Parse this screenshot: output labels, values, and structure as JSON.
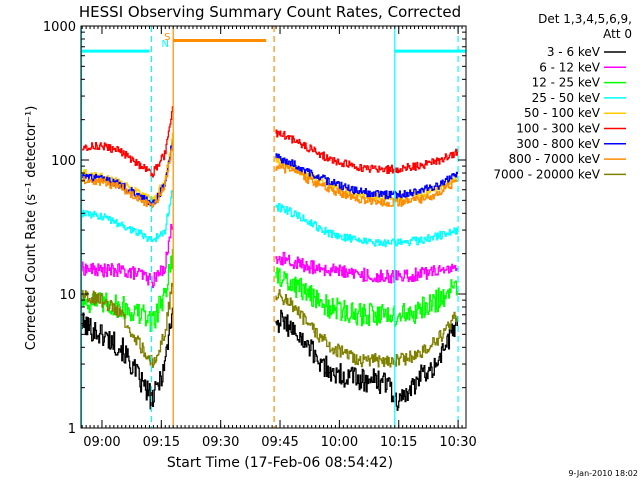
{
  "chart_data": {
    "type": "line",
    "title": "HESSI Observing Summary Count Rates, Corrected",
    "xlabel": "Start Time (17-Feb-06 08:54:42)",
    "ylabel": "Corrected Count Rate (s⁻¹ detector⁻¹)",
    "y_scale": "log",
    "ylim": [
      1,
      1000
    ],
    "y_ticks": [
      1,
      10,
      100,
      1000
    ],
    "y_tick_labels": [
      "1",
      "10",
      "100",
      "1000"
    ],
    "x_range": [
      "08:54:42",
      "10:32:00"
    ],
    "x_ticks": [
      "09:00",
      "09:15",
      "09:30",
      "09:45",
      "10:00",
      "10:15",
      "10:30"
    ],
    "legend_header": [
      "Det 1,3,4,5,6,9,",
      "Att 0"
    ],
    "legend_position": "right",
    "gaps": [
      [
        "09:18:00",
        "09:44:00"
      ]
    ],
    "series": [
      {
        "name": "3 - 6 keV",
        "color": "#000000",
        "left": [
          [
            "08:55",
            6
          ],
          [
            "09:00",
            5
          ],
          [
            "09:05",
            4
          ],
          [
            "09:10",
            2.2
          ],
          [
            "09:13",
            1.6
          ],
          [
            "09:16",
            3
          ],
          [
            "09:18",
            8
          ]
        ],
        "right": [
          [
            "09:44",
            6.5
          ],
          [
            "09:47",
            6
          ],
          [
            "09:52",
            4
          ],
          [
            "09:58",
            2.6
          ],
          [
            "10:05",
            2.3
          ],
          [
            "10:12",
            2.2
          ],
          [
            "10:15",
            1.5
          ],
          [
            "10:20",
            2.3
          ],
          [
            "10:25",
            3.2
          ],
          [
            "10:30",
            6
          ]
        ]
      },
      {
        "name": "6 - 12 keV",
        "color": "#ff00ff",
        "left": [
          [
            "08:55",
            15.5
          ],
          [
            "09:00",
            15
          ],
          [
            "09:05",
            15
          ],
          [
            "09:10",
            14
          ],
          [
            "09:13",
            12.5
          ],
          [
            "09:16",
            16
          ],
          [
            "09:18",
            35
          ]
        ],
        "right": [
          [
            "09:44",
            19
          ],
          [
            "09:47",
            18
          ],
          [
            "09:52",
            16
          ],
          [
            "09:58",
            15
          ],
          [
            "10:05",
            14
          ],
          [
            "10:12",
            13.5
          ],
          [
            "10:15",
            13.5
          ],
          [
            "10:20",
            14
          ],
          [
            "10:25",
            15
          ],
          [
            "10:30",
            16
          ]
        ]
      },
      {
        "name": "12 - 25 keV",
        "color": "#00ff00",
        "left": [
          [
            "08:55",
            9
          ],
          [
            "09:00",
            8.5
          ],
          [
            "09:05",
            8
          ],
          [
            "09:10",
            7
          ],
          [
            "09:13",
            6.2
          ],
          [
            "09:16",
            10
          ],
          [
            "09:18",
            20
          ]
        ],
        "right": [
          [
            "09:44",
            14
          ],
          [
            "09:47",
            13
          ],
          [
            "09:52",
            10
          ],
          [
            "09:58",
            8
          ],
          [
            "10:05",
            7
          ],
          [
            "10:12",
            7
          ],
          [
            "10:15",
            7
          ],
          [
            "10:20",
            7.5
          ],
          [
            "10:25",
            9
          ],
          [
            "10:30",
            12
          ]
        ]
      },
      {
        "name": "25 - 50 keV",
        "color": "#00ffff",
        "left": [
          [
            "08:55",
            40
          ],
          [
            "09:00",
            38
          ],
          [
            "09:05",
            33
          ],
          [
            "09:10",
            28
          ],
          [
            "09:13",
            25
          ],
          [
            "09:16",
            30
          ],
          [
            "09:18",
            60
          ]
        ],
        "right": [
          [
            "09:44",
            45
          ],
          [
            "09:47",
            42
          ],
          [
            "09:52",
            35
          ],
          [
            "09:58",
            28
          ],
          [
            "10:05",
            25
          ],
          [
            "10:12",
            24
          ],
          [
            "10:15",
            24
          ],
          [
            "10:20",
            25
          ],
          [
            "10:25",
            27
          ],
          [
            "10:30",
            30
          ]
        ]
      },
      {
        "name": "50 - 100 keV",
        "color": "#ffcc00",
        "left": [
          [
            "08:55",
            80
          ],
          [
            "09:00",
            75
          ],
          [
            "09:05",
            68
          ],
          [
            "09:10",
            55
          ],
          [
            "09:13",
            50
          ],
          [
            "09:16",
            70
          ],
          [
            "09:18",
            150
          ]
        ],
        "right": [
          [
            "09:44",
            100
          ],
          [
            "09:47",
            92
          ],
          [
            "09:52",
            78
          ],
          [
            "09:58",
            65
          ],
          [
            "10:05",
            55
          ],
          [
            "10:12",
            52
          ],
          [
            "10:15",
            52
          ],
          [
            "10:20",
            55
          ],
          [
            "10:25",
            60
          ],
          [
            "10:30",
            75
          ]
        ]
      },
      {
        "name": "100 - 300 keV",
        "color": "#ff0000",
        "left": [
          [
            "08:55",
            125
          ],
          [
            "09:00",
            128
          ],
          [
            "09:05",
            115
          ],
          [
            "09:10",
            90
          ],
          [
            "09:13",
            80
          ],
          [
            "09:16",
            110
          ],
          [
            "09:18",
            250
          ]
        ],
        "right": [
          [
            "09:44",
            160
          ],
          [
            "09:47",
            150
          ],
          [
            "09:52",
            125
          ],
          [
            "09:58",
            100
          ],
          [
            "10:05",
            88
          ],
          [
            "10:12",
            85
          ],
          [
            "10:15",
            86
          ],
          [
            "10:20",
            90
          ],
          [
            "10:25",
            98
          ],
          [
            "10:30",
            115
          ]
        ]
      },
      {
        "name": "300 - 800 keV",
        "color": "#0000ff",
        "left": [
          [
            "08:55",
            75
          ],
          [
            "09:00",
            72
          ],
          [
            "09:05",
            65
          ],
          [
            "09:10",
            52
          ],
          [
            "09:13",
            47
          ],
          [
            "09:16",
            65
          ],
          [
            "09:18",
            140
          ]
        ],
        "right": [
          [
            "09:44",
            105
          ],
          [
            "09:47",
            98
          ],
          [
            "09:52",
            82
          ],
          [
            "09:58",
            68
          ],
          [
            "10:05",
            58
          ],
          [
            "10:12",
            55
          ],
          [
            "10:15",
            55
          ],
          [
            "10:20",
            58
          ],
          [
            "10:25",
            64
          ],
          [
            "10:30",
            78
          ]
        ]
      },
      {
        "name": "800 - 7000 keV",
        "color": "#ff8c00",
        "left": [
          [
            "08:55",
            72
          ],
          [
            "09:00",
            69
          ],
          [
            "09:05",
            62
          ],
          [
            "09:10",
            50
          ],
          [
            "09:13",
            45
          ],
          [
            "09:16",
            62
          ],
          [
            "09:18",
            135
          ]
        ],
        "right": [
          [
            "09:44",
            90
          ],
          [
            "09:47",
            85
          ],
          [
            "09:52",
            72
          ],
          [
            "09:58",
            60
          ],
          [
            "10:05",
            51
          ],
          [
            "10:12",
            48
          ],
          [
            "10:15",
            48
          ],
          [
            "10:20",
            50
          ],
          [
            "10:25",
            56
          ],
          [
            "10:30",
            70
          ]
        ]
      },
      {
        "name": "7000 - 20000 keV",
        "color": "#808000",
        "left": [
          [
            "08:55",
            10
          ],
          [
            "09:00",
            9
          ],
          [
            "09:05",
            7
          ],
          [
            "09:10",
            4
          ],
          [
            "09:13",
            3
          ],
          [
            "09:16",
            5
          ],
          [
            "09:18",
            12
          ]
        ],
        "right": [
          [
            "09:44",
            10
          ],
          [
            "09:47",
            9
          ],
          [
            "09:52",
            6
          ],
          [
            "09:58",
            4
          ],
          [
            "10:05",
            3.2
          ],
          [
            "10:12",
            3.2
          ],
          [
            "10:15",
            3.2
          ],
          [
            "10:20",
            3.5
          ],
          [
            "10:25",
            4.5
          ],
          [
            "10:30",
            7
          ]
        ]
      }
    ],
    "top_bars": [
      {
        "color": "#00ffff",
        "from": "08:54:42",
        "to": "09:12:00",
        "y": 650
      },
      {
        "color": "#ff8c00",
        "from": "09:18:00",
        "to": "09:41:30",
        "y": 780
      },
      {
        "color": "#00ffff",
        "from": "10:14:00",
        "to": "10:32:00",
        "y": 650
      }
    ],
    "top_markers": [
      {
        "label": "S",
        "color": "#ff8c00",
        "at": "09:16:30"
      },
      {
        "label": "N",
        "color": "#00ffff",
        "at": "09:16:00"
      }
    ],
    "vlines": [
      {
        "at": "08:54:50",
        "color": "#00ffff",
        "style": "solid"
      },
      {
        "at": "09:12:30",
        "color": "#00ffff",
        "style": "dashed"
      },
      {
        "at": "09:18:00",
        "color": "#ff8c00",
        "style": "solid"
      },
      {
        "at": "09:43:30",
        "color": "#ff8c00",
        "style": "dashed"
      },
      {
        "at": "10:14:00",
        "color": "#00ffff",
        "style": "solid"
      },
      {
        "at": "10:30:00",
        "color": "#00ffff",
        "style": "dashed"
      }
    ],
    "grid": false
  },
  "footer": {
    "timestamp": "9-Jan-2010 18:02"
  }
}
